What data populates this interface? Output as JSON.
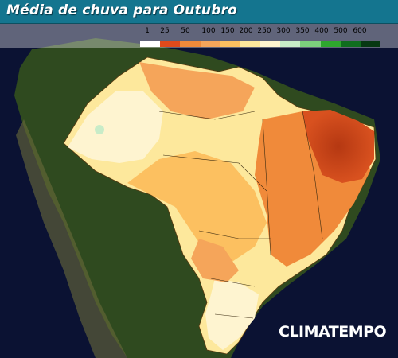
{
  "title": "Média de chuva para Outubro",
  "legend": {
    "labels": [
      "1",
      "25",
      "50",
      "100",
      "150",
      "200",
      "250",
      "300",
      "350",
      "400",
      "500",
      "600"
    ],
    "colors": [
      "#ffffff",
      "#e04a1c",
      "#f08a3a",
      "#f5a55a",
      "#fcc060",
      "#fde89c",
      "#fef4d0",
      "#c8ecc8",
      "#7cd07c",
      "#2ea82e",
      "#0f6e1e",
      "#063812"
    ]
  },
  "logo": "CLIMATEMPO"
}
